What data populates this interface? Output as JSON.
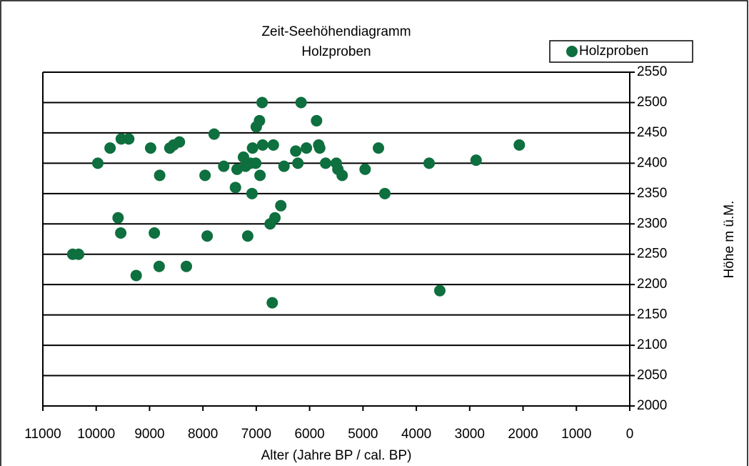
{
  "chart_data": {
    "type": "scatter",
    "title": "Zeit-Seehöhendiagramm",
    "subtitle": "Holzproben",
    "x_label": "Alter (Jahre BP / cal. BP)",
    "y_label": "Höhe m ü.M.",
    "x": [
      10440,
      10330,
      9970,
      9740,
      9590,
      9540,
      9530,
      9390,
      9250,
      8980,
      8910,
      8820,
      8810,
      8620,
      8550,
      8440,
      8310,
      7960,
      7920,
      7790,
      7610,
      7390,
      7360,
      7240,
      7200,
      7160,
      7110,
      7080,
      7070,
      7010,
      7000,
      6940,
      6930,
      6890,
      6880,
      6740,
      6700,
      6680,
      6650,
      6540,
      6480,
      6260,
      6220,
      6160,
      6060,
      5870,
      5830,
      5810,
      5700,
      5500,
      5470,
      5390,
      4960,
      4710,
      4590,
      3760,
      3560,
      2880,
      2070
    ],
    "series": [
      {
        "name": "Holzproben",
        "color": "#0e6f3f",
        "values": [
          2250,
          2250,
          2400,
          2425,
          2310,
          2285,
          2440,
          2440,
          2215,
          2425,
          2285,
          2230,
          2380,
          2425,
          2430,
          2435,
          2230,
          2380,
          2280,
          2448,
          2395,
          2360,
          2390,
          2410,
          2395,
          2280,
          2400,
          2350,
          2425,
          2400,
          2460,
          2470,
          2380,
          2500,
          2430,
          2300,
          2170,
          2430,
          2310,
          2330,
          2395,
          2420,
          2400,
          2500,
          2425,
          2470,
          2430,
          2425,
          2400,
          2400,
          2390,
          2380,
          2390,
          2425,
          2350,
          2400,
          2190,
          2405,
          2430
        ]
      }
    ],
    "xlim": [
      11000,
      0
    ],
    "xticks": [
      11000,
      10000,
      9000,
      8000,
      7000,
      6000,
      5000,
      4000,
      3000,
      2000,
      1000,
      0
    ],
    "ylim": [
      2000,
      2550
    ],
    "yticks": [
      2000,
      2050,
      2100,
      2150,
      2200,
      2250,
      2300,
      2350,
      2400,
      2450,
      2500,
      2550
    ],
    "grid": true,
    "legend": "top-right"
  }
}
